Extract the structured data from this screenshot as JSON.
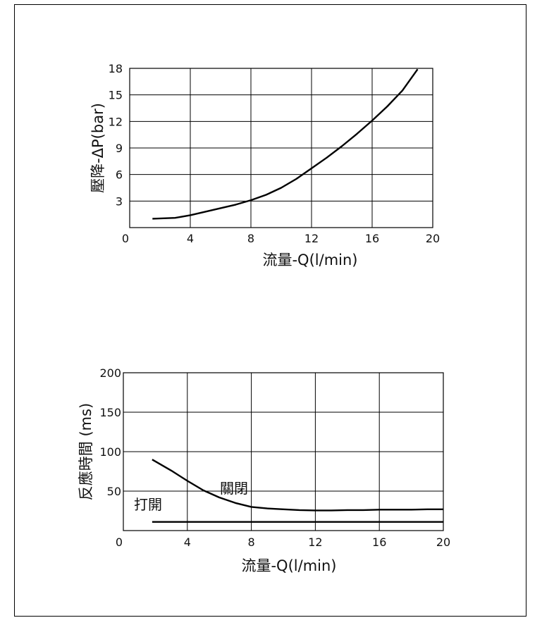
{
  "chart_data": [
    {
      "type": "line",
      "xlabel": "流量-Q(l/min)",
      "ylabel": "壓降-ΔP(bar)",
      "xlim": [
        0,
        20
      ],
      "ylim": [
        0,
        18
      ],
      "xticks": [
        "0",
        "4",
        "8",
        "12",
        "16",
        "20"
      ],
      "yticks": [
        "3",
        "6",
        "9",
        "12",
        "15",
        "18"
      ],
      "grid": true,
      "series": [
        {
          "name": "",
          "x": [
            1.5,
            3,
            4,
            5,
            6,
            7,
            8,
            9,
            10,
            11,
            12,
            13,
            14,
            15,
            16,
            17,
            18,
            19
          ],
          "y": [
            1.0,
            1.1,
            1.4,
            1.8,
            2.2,
            2.6,
            3.1,
            3.7,
            4.5,
            5.5,
            6.7,
            7.9,
            9.2,
            10.6,
            12.1,
            13.7,
            15.5,
            17.9
          ]
        }
      ]
    },
    {
      "type": "line",
      "xlabel": "流量-Q(l/min)",
      "ylabel": "反應時間 (ms)",
      "xlim": [
        0,
        20
      ],
      "ylim": [
        0,
        200
      ],
      "xticks": [
        "0",
        "4",
        "8",
        "12",
        "16",
        "20"
      ],
      "yticks": [
        "50",
        "100",
        "150",
        "200"
      ],
      "grid": true,
      "series": [
        {
          "name": "關閉",
          "x": [
            1.8,
            3,
            4,
            5,
            6,
            7,
            8,
            9,
            10,
            11,
            12,
            13,
            14,
            15,
            16,
            17,
            18,
            19,
            20
          ],
          "y": [
            90,
            76,
            63,
            51,
            42,
            35,
            30,
            28,
            27,
            26,
            25.5,
            25.5,
            26,
            26,
            26.5,
            26.5,
            26.5,
            27,
            27
          ]
        },
        {
          "name": "打開",
          "x": [
            1.8,
            20
          ],
          "y": [
            11,
            11
          ]
        }
      ]
    }
  ]
}
